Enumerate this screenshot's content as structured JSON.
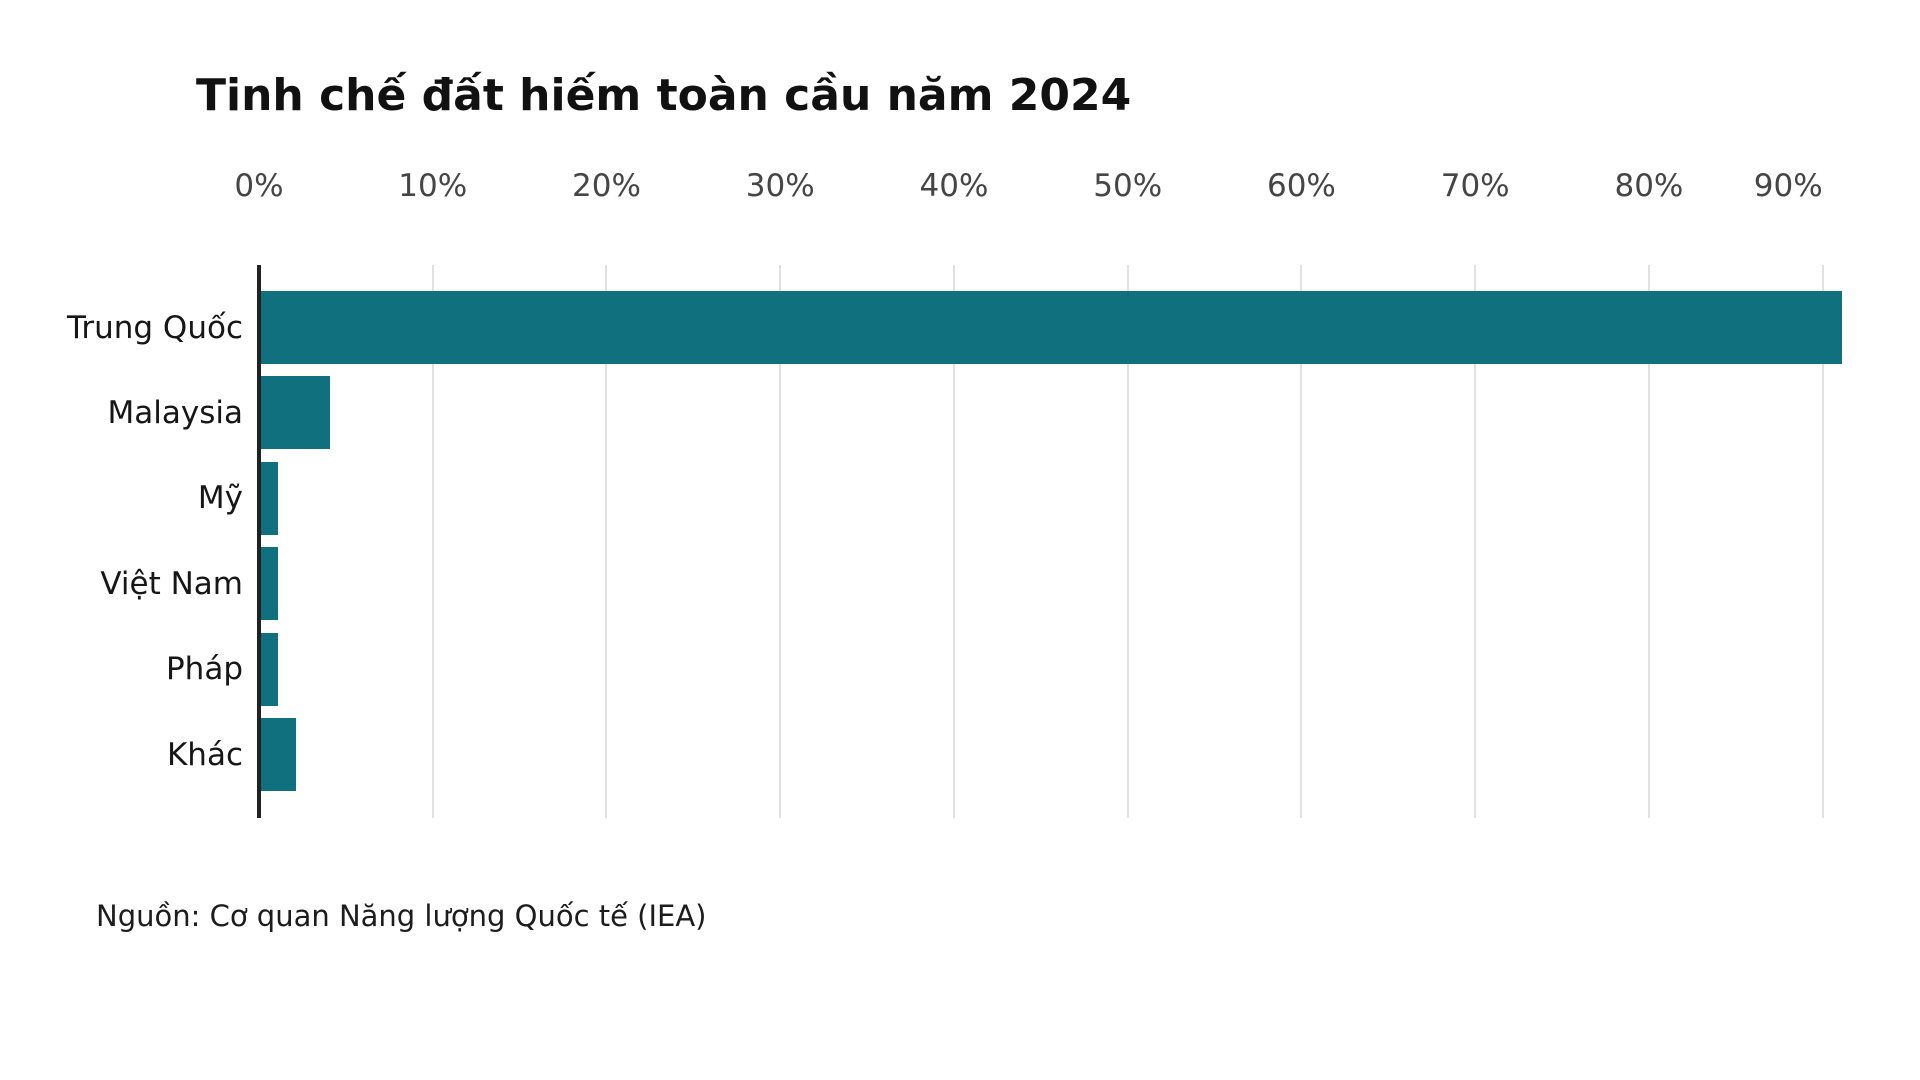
{
  "page": {
    "background": "#ffffff"
  },
  "chart": {
    "title": "Tinh chế đất hiếm toàn cầu năm 2024",
    "source": "Nguồn: Cơ quan Năng lượng Quốc tế (IEA)"
  },
  "chart_data": {
    "type": "bar",
    "orientation": "horizontal",
    "title": "Tinh chế đất hiếm toàn cầu năm 2024",
    "categories": [
      "Trung Quốc",
      "Malaysia",
      "Mỹ",
      "Việt Nam",
      "Pháp",
      "Khác"
    ],
    "values": [
      91,
      4,
      1,
      1,
      1,
      2
    ],
    "value_unit": "%",
    "x_ticks": [
      {
        "value": 0,
        "label": "0%"
      },
      {
        "value": 10,
        "label": "10%"
      },
      {
        "value": 20,
        "label": "20%"
      },
      {
        "value": 30,
        "label": "30%"
      },
      {
        "value": 40,
        "label": "40%"
      },
      {
        "value": 50,
        "label": "50%"
      },
      {
        "value": 60,
        "label": "60%"
      },
      {
        "value": 70,
        "label": "70%"
      },
      {
        "value": 80,
        "label": "80%"
      },
      {
        "value": 90,
        "label": "90%"
      }
    ],
    "xlim": [
      0,
      93.3
    ],
    "grid": true,
    "legend": "none",
    "colors": {
      "bar": "#11707e",
      "gridline": "#e1e1e1",
      "axis_line": "#222222",
      "tick_label": "#454545",
      "category_label": "#161616",
      "title": "#111111",
      "source": "#1c1c1c"
    },
    "source": "Nguồn: Cơ quan Năng lượng Quốc tế (IEA)"
  }
}
